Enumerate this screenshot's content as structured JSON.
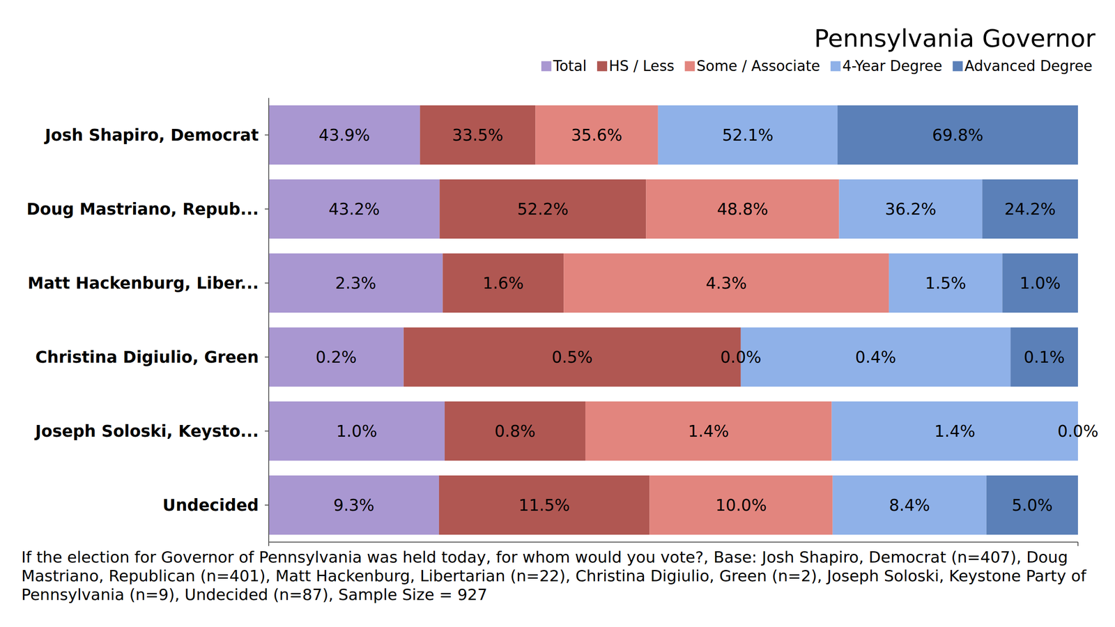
{
  "chart_data": {
    "type": "bar",
    "orientation": "horizontal",
    "stacked": true,
    "data_labels": true,
    "tick_labels": false,
    "legend": "top-right",
    "title": "Pennsylvania Governor",
    "note": "If the election for Governor of Pennsylvania was held today, for whom would you vote?, Base: Josh Shapiro, Democrat (n=407), Doug Mastriano, Republican (n=401), Matt Hackenburg, Libertarian (n=22), Christina Digiulio, Green (n=2), Joseph Soloski, Keystone Party of Pennsylvania (n=9), Undecided (n=87), Sample Size = 927",
    "categories": [
      "Josh Shapiro, Democrat",
      "Doug Mastriano, Repub...",
      "Matt Hackenburg, Liber...",
      "Christina Digiulio, Green",
      "Joseph Soloski, Keysto...",
      "Undecided"
    ],
    "series": [
      {
        "name": "Total",
        "color": "#a997d1",
        "values": [
          43.9,
          43.2,
          2.3,
          0.2,
          1.0,
          9.3
        ],
        "value_labels": [
          "43.9%",
          "43.2%",
          "2.3%",
          "0.2%",
          "1.0%",
          "9.3%"
        ]
      },
      {
        "name": "HS / Less",
        "color": "#b05752",
        "values": [
          33.5,
          52.2,
          1.6,
          0.5,
          0.8,
          11.5
        ],
        "value_labels": [
          "33.5%",
          "52.2%",
          "1.6%",
          "0.5%",
          "0.8%",
          "11.5%"
        ]
      },
      {
        "name": "Some / Associate",
        "color": "#e2857e",
        "values": [
          35.6,
          48.8,
          4.3,
          0.0,
          1.4,
          10.0
        ],
        "value_labels": [
          "35.6%",
          "48.8%",
          "4.3%",
          "0.0%",
          "1.4%",
          "10.0%"
        ]
      },
      {
        "name": "4-Year Degree",
        "color": "#8fb1e8",
        "values": [
          52.1,
          36.2,
          1.5,
          0.4,
          1.4,
          8.4
        ],
        "value_labels": [
          "52.1%",
          "36.2%",
          "1.5%",
          "0.4%",
          "1.4%",
          "8.4%"
        ]
      },
      {
        "name": "Advanced Degree",
        "color": "#5b80b8",
        "values": [
          69.8,
          24.2,
          1.0,
          0.1,
          0.0,
          5.0
        ],
        "value_labels": [
          "69.8%",
          "24.2%",
          "1.0%",
          "0.1%",
          "0.0%",
          "5.0%"
        ]
      }
    ]
  }
}
